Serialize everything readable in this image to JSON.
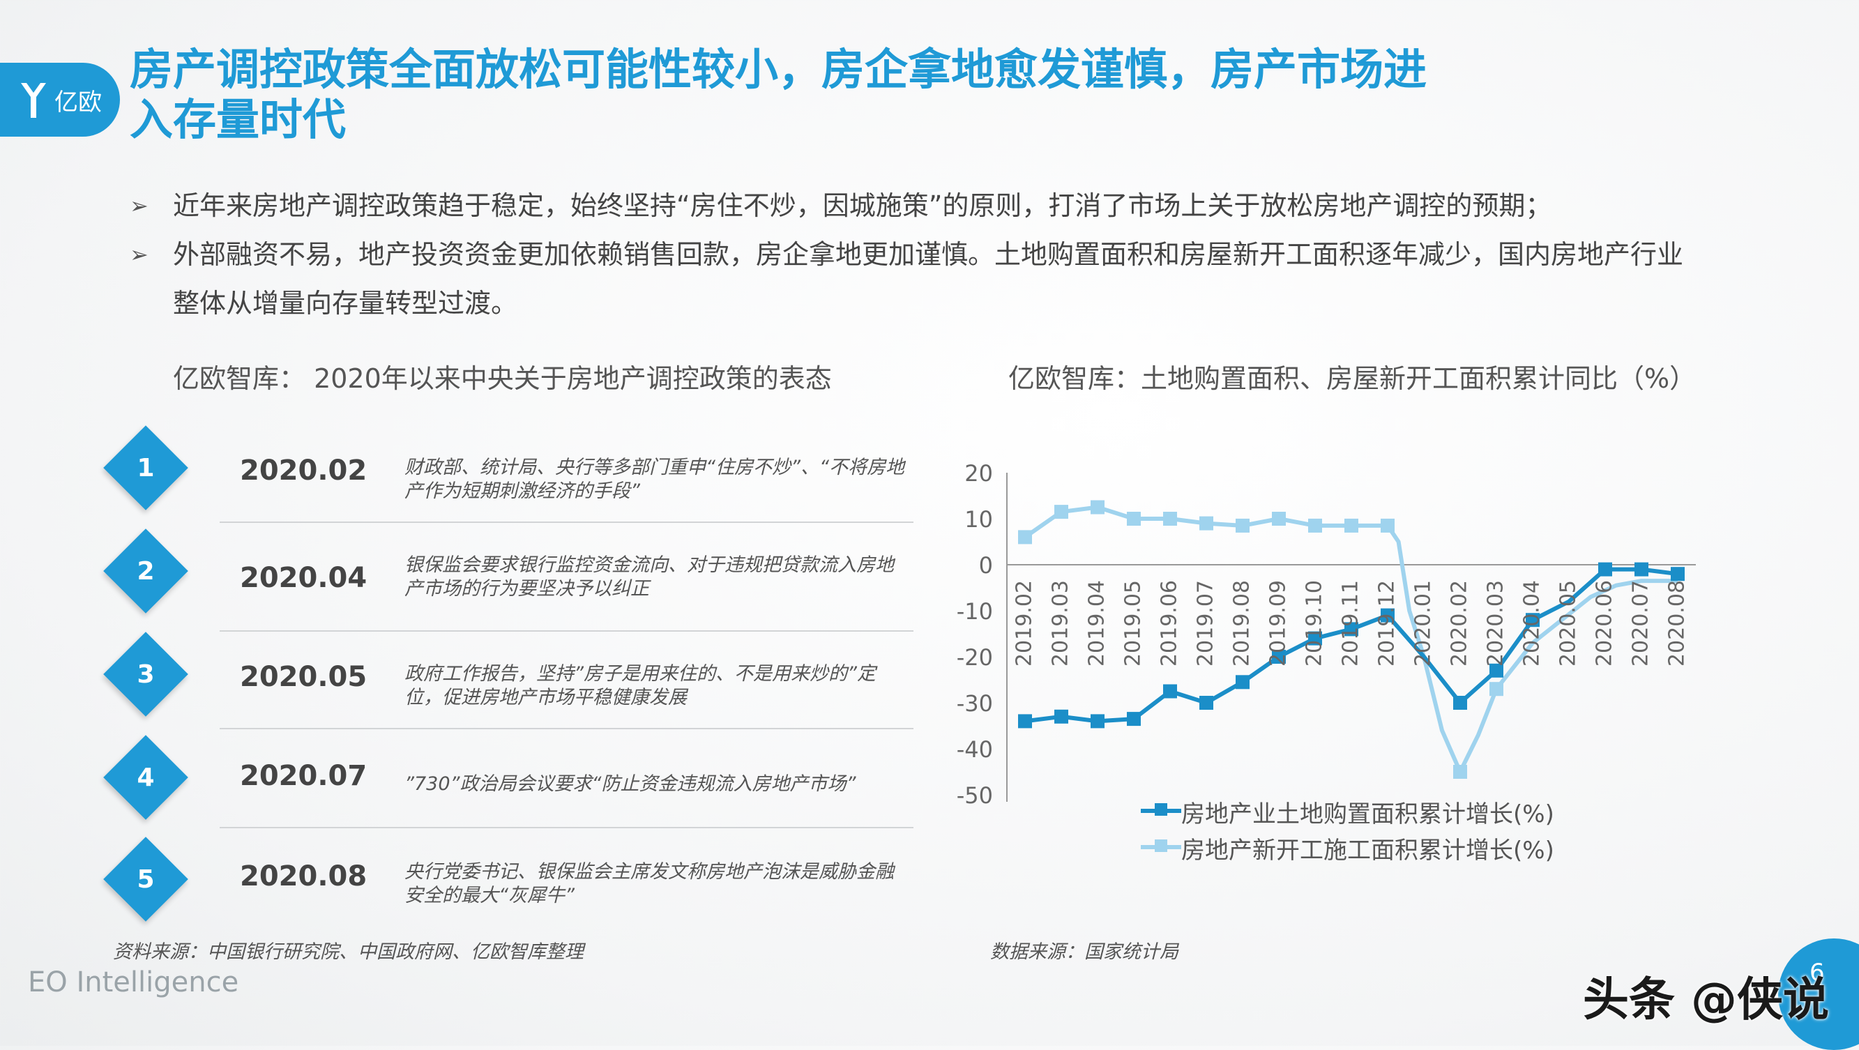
{
  "logo": {
    "text": "亿欧"
  },
  "title": "房产调控政策全面放松可能性较小，房企拿地愈发谨慎，房产市场进入存量时代",
  "bullets": [
    {
      "arrow": "➢",
      "text": "近年来房地产调控政策趋于稳定，始终坚持“房住不炒，因城施策”的原则，打消了市场上关于放松房地产调控的预期；"
    },
    {
      "arrow": "➢",
      "text": "外部融资不易，地产投资资金更加依赖销售回款，房企拿地更加谨慎。土地购置面积和房屋新开工面积逐年减少，国内房地产行业整体从增量向存量转型过渡。"
    }
  ],
  "left_subtitle": "亿欧智库： 2020年以来中央关于房地产调控政策的表态",
  "right_subtitle": "亿欧智库：土地购置面积、房屋新开工面积累计同比（%）",
  "timeline": [
    {
      "num": "1",
      "date": "2020.02",
      "desc": "财政部、统计局、央行等多部门重申“住房不炒”、“不将房地产作为短期刺激经济的手段”"
    },
    {
      "num": "2",
      "date": "2020.04",
      "desc": "银保监会要求银行监控资金流向、对于违规把贷款流入房地产市场的行为要坚决予以纠正"
    },
    {
      "num": "3",
      "date": "2020.05",
      "desc": "政府工作报告，坚持”房子是用来住的、不是用来炒的”定位，促进房地产市场平稳健康发展"
    },
    {
      "num": "4",
      "date": "2020.07",
      "desc": "”730”政治局会议要求“防止资金违规流入房地产市场”"
    },
    {
      "num": "5",
      "date": "2020.08",
      "desc": "央行党委书记、银保监会主席发文称房地产泡沫是威胁金融安全的最大“灰犀牛”"
    }
  ],
  "left_source": "资料来源：中国银行研究院、中国政府网、亿欧智库整理",
  "right_source": "数据来源：国家统计局",
  "footer_brand": "EO Intelligence",
  "page_number": "6",
  "watermark": "头条 @侠说",
  "colors": {
    "accent": "#1f9ad6",
    "series1": "#1b8ec8",
    "series2": "#9fd3ee"
  },
  "chart_data": {
    "type": "line",
    "x": [
      "2019.02",
      "2019.03",
      "2019.04",
      "2019.05",
      "2019.06",
      "2019.07",
      "2019.08",
      "2019.09",
      "2019.10",
      "2019.11",
      "2019.12",
      "2020.01",
      "2020.02",
      "2020.03",
      "2020.04",
      "2020.05",
      "2020.06",
      "2020.07",
      "2020.08"
    ],
    "ylim": [
      -50,
      20
    ],
    "yticks": [
      "20",
      "10",
      "0",
      "-10",
      "-20",
      "-30",
      "-40",
      "-50"
    ],
    "series": [
      {
        "name": "房地产业土地购置面积累计增长(%)",
        "values": [
          -34,
          -33,
          -34,
          -33.5,
          -27.5,
          -30,
          -25.5,
          -20,
          -16,
          -14,
          -11,
          -20,
          -30,
          -23,
          -12,
          -8,
          -1,
          -1,
          -2
        ],
        "markers": [
          true,
          true,
          true,
          true,
          true,
          true,
          true,
          true,
          true,
          true,
          true,
          false,
          true,
          true,
          true,
          false,
          true,
          true,
          true
        ]
      },
      {
        "name": "房地产新开工施工面积累计增长(%)",
        "values": [
          6,
          11.5,
          12.5,
          10,
          10,
          9,
          8.5,
          10,
          8.5,
          8.5,
          null,
          null,
          -45,
          -27,
          null,
          null,
          null,
          null,
          null
        ],
        "markers": [
          true,
          true,
          true,
          true,
          true,
          true,
          true,
          true,
          true,
          true,
          true,
          false,
          true,
          true,
          false,
          false,
          false,
          false,
          false
        ],
        "curve": [
          [
            10,
            8.5
          ],
          [
            10.3,
            5
          ],
          [
            10.6,
            -10
          ],
          [
            11,
            -20
          ],
          [
            11.5,
            -36
          ],
          [
            12,
            -45
          ],
          [
            12.5,
            -37
          ],
          [
            13,
            -27
          ],
          [
            13.6,
            -21
          ],
          [
            14,
            -17
          ],
          [
            14.8,
            -12
          ],
          [
            15.6,
            -7
          ],
          [
            16.3,
            -4.5
          ],
          [
            17,
            -3.5
          ],
          [
            18,
            -3.5
          ]
        ]
      }
    ]
  }
}
